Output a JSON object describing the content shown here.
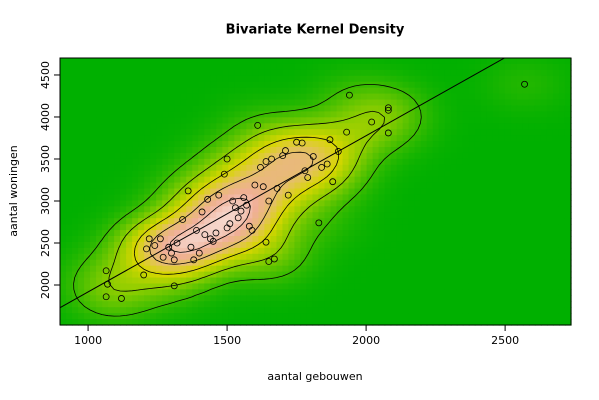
{
  "chart_data": {
    "type": "scatter",
    "title": "Bivariate Kernel Density",
    "x_label": "aantal gebouwen",
    "y_label": "aantal woningen",
    "x": [
      1065,
      1065,
      1070,
      1120,
      1200,
      1210,
      1220,
      1240,
      1260,
      1270,
      1290,
      1300,
      1310,
      1310,
      1320,
      1340,
      1360,
      1370,
      1380,
      1390,
      1400,
      1410,
      1420,
      1430,
      1440,
      1450,
      1460,
      1470,
      1490,
      1500,
      1500,
      1510,
      1520,
      1530,
      1540,
      1550,
      1560,
      1570,
      1580,
      1590,
      1600,
      1610,
      1620,
      1630,
      1640,
      1640,
      1650,
      1650,
      1660,
      1670,
      1680,
      1700,
      1710,
      1720,
      1750,
      1770,
      1780,
      1790,
      1810,
      1830,
      1840,
      1860,
      1870,
      1880,
      1900,
      1930,
      1940,
      2020,
      2080,
      2080,
      2080,
      2570
    ],
    "values": [
      2170,
      1860,
      2010,
      1840,
      2120,
      2430,
      2550,
      2470,
      2550,
      2330,
      2450,
      2380,
      1990,
      2300,
      2500,
      2780,
      3120,
      2450,
      2300,
      2650,
      2380,
      2870,
      2600,
      3020,
      2550,
      2520,
      2620,
      3070,
      3320,
      3500,
      2680,
      2730,
      3000,
      2920,
      2800,
      2880,
      3040,
      2950,
      2700,
      2650,
      3190,
      3900,
      3400,
      3170,
      2510,
      3470,
      2280,
      3000,
      3500,
      2310,
      3150,
      3540,
      3600,
      3070,
      3700,
      3690,
      3360,
      3280,
      3530,
      2740,
      3400,
      3440,
      3730,
      3230,
      3590,
      3820,
      4260,
      3940,
      4080,
      4110,
      3810,
      4390
    ],
    "xlim": [
      899,
      2737
    ],
    "ylim": [
      1524,
      4702
    ],
    "xticks": [
      1000,
      1500,
      2000,
      2500
    ],
    "yticks": [
      2000,
      2500,
      3000,
      3500,
      4000,
      4500
    ],
    "point_color": "#000000",
    "line_color": "#000000"
  }
}
